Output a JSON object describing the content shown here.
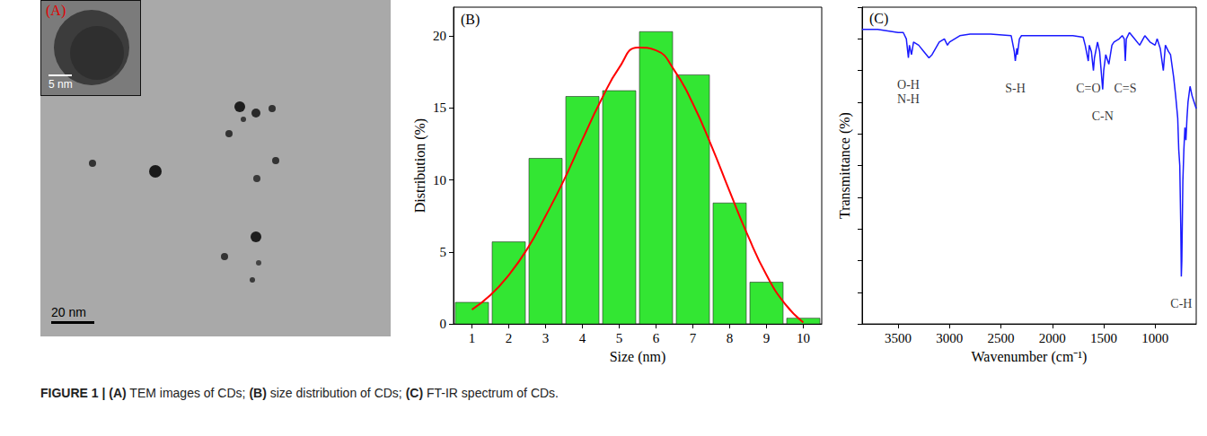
{
  "panel_a": {
    "letter": "(A)",
    "scale_bar": "20 nm",
    "inset_scale_bar": "5 nm"
  },
  "chart_data": [
    {
      "type": "histogram",
      "panel_label": "(B)",
      "xlabel": "Size (nm)",
      "ylabel": "Distribution (%)",
      "bins": [
        0.5,
        1.5,
        2.5,
        3.5,
        4.5,
        5.5,
        6.5,
        7.5,
        8.5,
        9.5,
        10.5
      ],
      "values": [
        1.5,
        5.7,
        11.5,
        15.8,
        16.2,
        20.3,
        17.3,
        8.4,
        2.9,
        0.4
      ],
      "color": "#33e633",
      "fit": {
        "x": [
          1,
          1.5,
          2,
          2.5,
          3,
          3.5,
          4,
          4.5,
          5,
          5.5,
          6,
          6.5,
          7,
          7.5,
          8,
          8.5,
          9,
          9.5,
          10
        ],
        "values": [
          1.0,
          2.0,
          3.4,
          5.2,
          7.5,
          10.0,
          12.8,
          15.5,
          17.8,
          19.2,
          19.0,
          17.6,
          15.3,
          12.4,
          9.2,
          6.1,
          3.4,
          1.4,
          0.1
        ],
        "color": "#ff0000"
      },
      "xlim": [
        0.5,
        10.5
      ],
      "xticks": [
        1,
        2,
        3,
        4,
        5,
        6,
        7,
        8,
        9,
        10
      ],
      "ylim": [
        0,
        22
      ],
      "yticks": [
        0,
        5,
        10,
        15,
        20
      ]
    },
    {
      "type": "line",
      "panel_label": "(C)",
      "xlabel": "Wavenumber (cm⁻¹)",
      "ylabel": "Transmittance (%)",
      "x": [
        3850,
        3800,
        3700,
        3600,
        3500,
        3450,
        3420,
        3400,
        3390,
        3370,
        3350,
        3300,
        3250,
        3200,
        3170,
        3100,
        3050,
        3020,
        3000,
        2950,
        2900,
        2800,
        2600,
        2400,
        2370,
        2360,
        2345,
        2340,
        2320,
        2300,
        2000,
        1800,
        1700,
        1680,
        1650,
        1640,
        1620,
        1600,
        1590,
        1560,
        1540,
        1510,
        1500,
        1480,
        1450,
        1420,
        1400,
        1350,
        1320,
        1300,
        1290,
        1280,
        1250,
        1200,
        1150,
        1100,
        1050,
        1000,
        980,
        950,
        920,
        900,
        870,
        850,
        820,
        800,
        780,
        770,
        760,
        750,
        745,
        740,
        730,
        720,
        710,
        700,
        690,
        680,
        660,
        640,
        620,
        600
      ],
      "values": [
        93,
        93,
        93,
        92.5,
        92,
        92,
        90,
        84,
        88,
        85,
        89,
        88,
        86,
        84,
        85,
        89,
        90,
        88,
        89,
        90,
        91,
        91.5,
        91.5,
        91,
        86,
        83,
        87,
        85,
        90,
        91,
        91,
        91,
        90.5,
        88,
        83,
        88,
        86,
        80,
        84,
        89,
        86,
        74,
        80,
        85,
        82,
        88,
        89,
        90,
        91,
        90,
        83,
        90,
        92,
        90,
        88,
        91,
        89,
        88,
        90,
        87,
        80,
        88,
        86,
        85,
        78,
        72,
        65,
        55,
        50,
        30,
        15,
        20,
        45,
        55,
        62,
        58,
        65,
        70,
        75,
        72,
        70,
        68
      ],
      "color": "#1a1aff",
      "xlim": [
        3850,
        600
      ],
      "xticks": [
        3500,
        3000,
        2500,
        2000,
        1500,
        1000
      ],
      "ylim": [
        0,
        100
      ],
      "yticks": [
        0,
        10,
        20,
        30,
        40,
        50,
        60,
        70,
        80,
        90,
        100
      ],
      "tick_labels": "x",
      "annotations": [
        {
          "lines": [
            "O-H",
            "N-H"
          ],
          "x": 3400
        },
        {
          "lines": [
            "S-H"
          ],
          "x": 2360
        },
        {
          "lines": [
            "C=O"
          ],
          "x": 1650
        },
        {
          "lines": [
            "C-N"
          ],
          "x": 1510
        },
        {
          "lines": [
            "C=S"
          ],
          "x": 1290
        },
        {
          "lines": [
            "C-H"
          ],
          "x": 745
        }
      ]
    }
  ],
  "caption": {
    "label": "FIGURE 1 |",
    "parts": [
      {
        "letter": "(A)",
        "text": "TEM images of CDs;"
      },
      {
        "letter": "(B)",
        "text": "size distribution of CDs;"
      },
      {
        "letter": "(C)",
        "text": "FT-IR spectrum of CDs."
      }
    ]
  }
}
